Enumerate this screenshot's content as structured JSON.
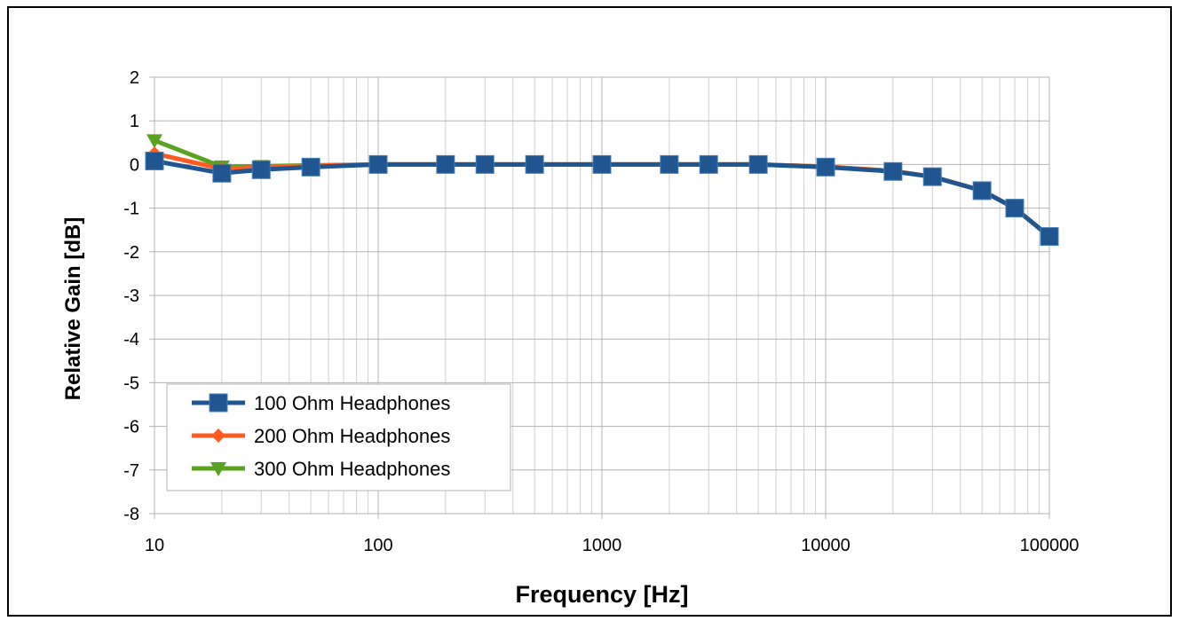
{
  "chart_data": {
    "type": "line",
    "title": "",
    "xlabel": "Frequency [Hz]",
    "ylabel": "Relative Gain [dB]",
    "x_scale": "log",
    "xlim": [
      10,
      100000
    ],
    "ylim": [
      -8,
      2
    ],
    "grid": true,
    "legend_position": "bottom-left",
    "x_ticks": [
      10,
      100,
      1000,
      10000,
      100000
    ],
    "x_tick_labels": [
      "10",
      "100",
      "1000",
      "10000",
      "100000"
    ],
    "y_ticks": [
      2,
      1,
      0,
      -1,
      -2,
      -3,
      -4,
      -5,
      -6,
      -7,
      -8
    ],
    "y_tick_labels": [
      "2",
      "1",
      "0",
      "-1",
      "-2",
      "-3",
      "-4",
      "-5",
      "-6",
      "-7",
      "-8"
    ],
    "x": [
      10,
      20,
      30,
      50,
      100,
      200,
      300,
      500,
      1000,
      2000,
      3000,
      5000,
      10000,
      20000,
      30000,
      50000,
      70000,
      100000
    ],
    "series": [
      {
        "name": "100 Ohm Headphones",
        "color": "#1f5591",
        "marker": "square",
        "values": [
          0.08,
          -0.2,
          -0.12,
          -0.06,
          0.0,
          0.0,
          0.0,
          0.0,
          0.0,
          0.0,
          0.0,
          0.0,
          -0.06,
          -0.16,
          -0.28,
          -0.6,
          -1.0,
          -1.65
        ]
      },
      {
        "name": "200 Ohm Headphones",
        "color": "#ff5a1f",
        "marker": "diamond",
        "values": [
          0.25,
          -0.1,
          -0.06,
          -0.03,
          0.0,
          0.0,
          0.0,
          0.0,
          0.0,
          0.0,
          0.0,
          0.0,
          -0.05,
          -0.15,
          -0.28,
          -0.6,
          -1.0,
          -1.65
        ]
      },
      {
        "name": "300 Ohm Headphones",
        "color": "#58a31f",
        "marker": "triangle-down",
        "values": [
          0.55,
          -0.05,
          -0.04,
          -0.02,
          0.0,
          0.0,
          0.0,
          0.0,
          0.0,
          0.0,
          0.0,
          0.0,
          -0.05,
          -0.15,
          -0.28,
          -0.6,
          -1.0,
          -1.65
        ]
      }
    ]
  }
}
